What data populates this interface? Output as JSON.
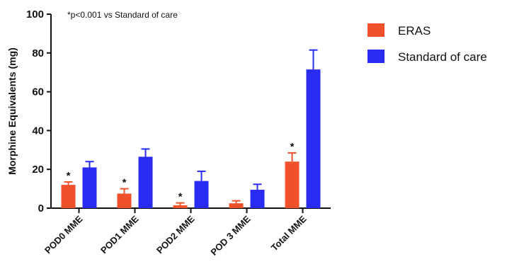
{
  "chart_data": {
    "type": "bar",
    "title": "",
    "annotation": "*p<0.001 vs Standard of care",
    "ylabel": "Morphine Equivalents (mg)",
    "xlabel": "",
    "ylim": [
      0,
      100
    ],
    "yticks": [
      0,
      20,
      40,
      60,
      80,
      100
    ],
    "categories": [
      "POD0 MME",
      "POD1 MME",
      "POD2 MME",
      "POD 3 MME",
      "Total MME"
    ],
    "legend_position": "top-right",
    "grid": false,
    "series": [
      {
        "name": "ERAS",
        "color": "#f0502a",
        "values": [
          12,
          7.5,
          1.5,
          2.5,
          24
        ],
        "error": [
          1.5,
          2.5,
          1.2,
          1.3,
          4.5
        ],
        "significance": [
          "*",
          "*",
          "*",
          "",
          "*"
        ]
      },
      {
        "name": "Standard of care",
        "color": "#2a2cf6",
        "values": [
          21,
          26.5,
          14,
          9.5,
          71.5
        ],
        "error": [
          3,
          4,
          5,
          2.8,
          10
        ],
        "significance": [
          "",
          "",
          "",
          "",
          ""
        ]
      }
    ]
  }
}
